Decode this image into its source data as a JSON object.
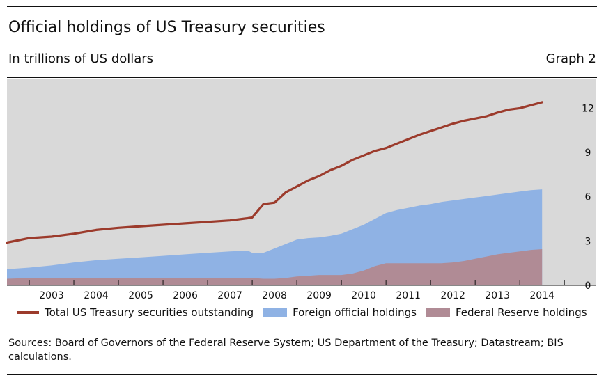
{
  "header": {
    "title": "Official holdings of US Treasury securities",
    "subtitle": "In trillions of US dollars",
    "graph_label": "Graph 2"
  },
  "footer": {
    "sources": "Sources: Board of Governors of the Federal Reserve System; US Department of the Treasury; Datastream; BIS calculations."
  },
  "colors": {
    "plot_bg": "#d9d9d9",
    "total": "#9c3b2c",
    "foreign": "#8fb2e4",
    "fed": "#b08b95"
  },
  "chart_data": {
    "type": "area",
    "x_tick_labels": [
      "2003",
      "2004",
      "2005",
      "2006",
      "2007",
      "2008",
      "2009",
      "2010",
      "2011",
      "2012",
      "2013",
      "2014"
    ],
    "y_tick_labels": [
      "0",
      "3",
      "6",
      "9",
      "12"
    ],
    "ylim": [
      0,
      14
    ],
    "xlim": [
      2002.5,
      2015.2
    ],
    "y_axis_position": "right",
    "grid": false,
    "legend_position": "bottom",
    "x": [
      2002.5,
      2003.0,
      2003.5,
      2004.0,
      2004.5,
      2005.0,
      2005.5,
      2006.0,
      2006.5,
      2007.0,
      2007.5,
      2007.9,
      2008.0,
      2008.25,
      2008.5,
      2008.75,
      2009.0,
      2009.25,
      2009.5,
      2009.75,
      2010.0,
      2010.25,
      2010.5,
      2010.75,
      2011.0,
      2011.25,
      2011.5,
      2011.75,
      2012.0,
      2012.25,
      2012.5,
      2012.75,
      2013.0,
      2013.25,
      2013.5,
      2013.75,
      2014.0,
      2014.25,
      2014.5
    ],
    "series": [
      {
        "name": "Total US Treasury securities outstanding",
        "role": "line",
        "values": [
          2.9,
          3.2,
          3.3,
          3.5,
          3.75,
          3.9,
          4.0,
          4.1,
          4.2,
          4.3,
          4.4,
          4.55,
          4.6,
          5.5,
          5.6,
          6.3,
          6.7,
          7.1,
          7.4,
          7.8,
          8.1,
          8.5,
          8.8,
          9.1,
          9.3,
          9.6,
          9.9,
          10.2,
          10.45,
          10.7,
          10.95,
          11.15,
          11.3,
          11.45,
          11.7,
          11.9,
          12.0,
          12.2,
          12.4
        ]
      },
      {
        "name": "Foreign official holdings",
        "role": "area",
        "values": [
          1.1,
          1.2,
          1.35,
          1.55,
          1.7,
          1.8,
          1.9,
          2.0,
          2.1,
          2.2,
          2.3,
          2.35,
          2.2,
          2.2,
          2.5,
          2.8,
          3.1,
          3.2,
          3.25,
          3.35,
          3.5,
          3.8,
          4.1,
          4.5,
          4.9,
          5.1,
          5.25,
          5.4,
          5.5,
          5.65,
          5.75,
          5.85,
          5.95,
          6.05,
          6.15,
          6.25,
          6.35,
          6.45,
          6.5
        ]
      },
      {
        "name": "Federal Reserve holdings",
        "role": "area",
        "values": [
          0.45,
          0.5,
          0.5,
          0.5,
          0.5,
          0.5,
          0.5,
          0.5,
          0.5,
          0.5,
          0.5,
          0.5,
          0.5,
          0.45,
          0.45,
          0.5,
          0.6,
          0.65,
          0.7,
          0.7,
          0.7,
          0.8,
          1.0,
          1.3,
          1.5,
          1.5,
          1.5,
          1.5,
          1.5,
          1.5,
          1.55,
          1.65,
          1.8,
          1.95,
          2.1,
          2.2,
          2.3,
          2.4,
          2.45
        ]
      }
    ]
  }
}
